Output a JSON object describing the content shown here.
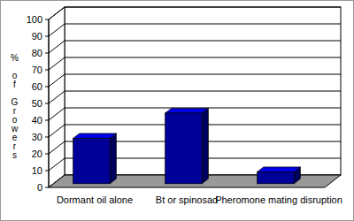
{
  "chart_data": {
    "type": "bar",
    "categories": [
      "Dormant oil alone",
      "Bt or spinosad",
      "Pheromone mating disruption"
    ],
    "values": [
      27,
      42,
      7
    ],
    "color": "#000099",
    "ylabel": "% of Growers",
    "ylim": [
      0,
      100
    ],
    "yticks": [
      0,
      10,
      20,
      30,
      40,
      50,
      60,
      70,
      80,
      90,
      100
    ],
    "grid": true
  }
}
